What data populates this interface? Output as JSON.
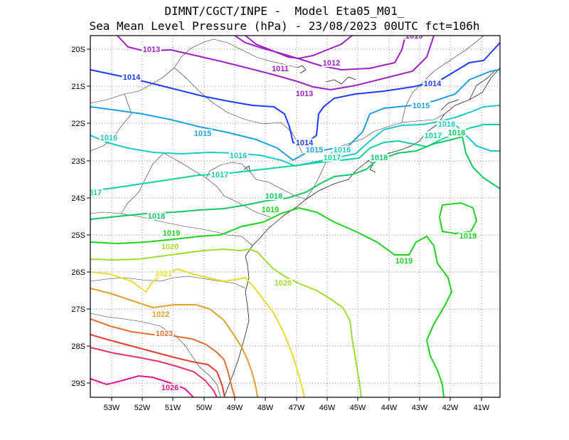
{
  "title_line1": "DIMNT/CGCT/INPE -  Model Eta05_M01_",
  "title_line2": "Sea Mean Level Pressure (hPa) - 23/08/2023 00UTC fct=106h",
  "lon_ticks": [
    "53W",
    "52W",
    "51W",
    "50W",
    "49W",
    "48W",
    "47W",
    "46W",
    "45W",
    "44W",
    "43W",
    "42W",
    "41W"
  ],
  "lat_ticks": [
    "20S",
    "21S",
    "22S",
    "23S",
    "24S",
    "25S",
    "26S",
    "27S",
    "28S",
    "29S"
  ],
  "isobars": [
    {
      "value": "1013",
      "color": "#a020c8"
    },
    {
      "value": "1012",
      "color": "#a020c8"
    },
    {
      "value": "1011",
      "color": "#a020c8"
    },
    {
      "value": "1014",
      "color": "#1e3cff"
    },
    {
      "value": "1015",
      "color": "#1ea0e6"
    },
    {
      "value": "1016",
      "color": "#20c8c8"
    },
    {
      "value": "1017",
      "color": "#10d2a0"
    },
    {
      "value": "1018",
      "color": "#10c864"
    },
    {
      "value": "1019",
      "color": "#20d220"
    },
    {
      "value": "1020",
      "color": "#a0dc32"
    },
    {
      "value": "1021",
      "color": "#e6dc32"
    },
    {
      "value": "1022",
      "color": "#e6a032"
    },
    {
      "value": "1023",
      "color": "#e66e32"
    },
    {
      "value": "1026",
      "color": "#e0148c"
    }
  ],
  "contour_labels": [
    {
      "text": "1013",
      "color": "#a020c8"
    },
    {
      "text": "1011",
      "color": "#a020c8"
    },
    {
      "text": "1012",
      "color": "#a020c8"
    },
    {
      "text": "1013",
      "color": "#a020c8"
    },
    {
      "text": "1013",
      "color": "#a020c8"
    },
    {
      "text": "1014",
      "color": "#1e3cff"
    },
    {
      "text": "1014",
      "color": "#1e3cff"
    },
    {
      "text": "1014",
      "color": "#1e3cff"
    },
    {
      "text": "1015",
      "color": "#1ea0e6"
    },
    {
      "text": "1015",
      "color": "#1ea0e6"
    },
    {
      "text": "1015",
      "color": "#1ea0e6"
    },
    {
      "text": "1016",
      "color": "#20c8c8"
    },
    {
      "text": "1016",
      "color": "#20c8c8"
    },
    {
      "text": "1016",
      "color": "#20c8c8"
    },
    {
      "text": "1016",
      "color": "#20c8c8"
    },
    {
      "text": "1017",
      "color": "#10d2a0"
    },
    {
      "text": "1017",
      "color": "#10d2a0"
    },
    {
      "text": "1017",
      "color": "#10d2a0"
    },
    {
      "text": "017",
      "color": "#10d2a0"
    },
    {
      "text": "1018",
      "color": "#10c864"
    },
    {
      "text": "1018",
      "color": "#10c864"
    },
    {
      "text": "1018",
      "color": "#10c864"
    },
    {
      "text": "1018",
      "color": "#10c864"
    },
    {
      "text": "1019",
      "color": "#20d220"
    },
    {
      "text": "1019",
      "color": "#20d220"
    },
    {
      "text": "1019",
      "color": "#20d220"
    },
    {
      "text": "1019",
      "color": "#20d220"
    },
    {
      "text": "1020",
      "color": "#a0dc32"
    },
    {
      "text": "1020",
      "color": "#a0dc32"
    },
    {
      "text": "1021",
      "color": "#e6dc32"
    },
    {
      "text": "1022",
      "color": "#e6a032"
    },
    {
      "text": "1023",
      "color": "#e66e32"
    },
    {
      "text": "1026",
      "color": "#e0148c"
    }
  ]
}
